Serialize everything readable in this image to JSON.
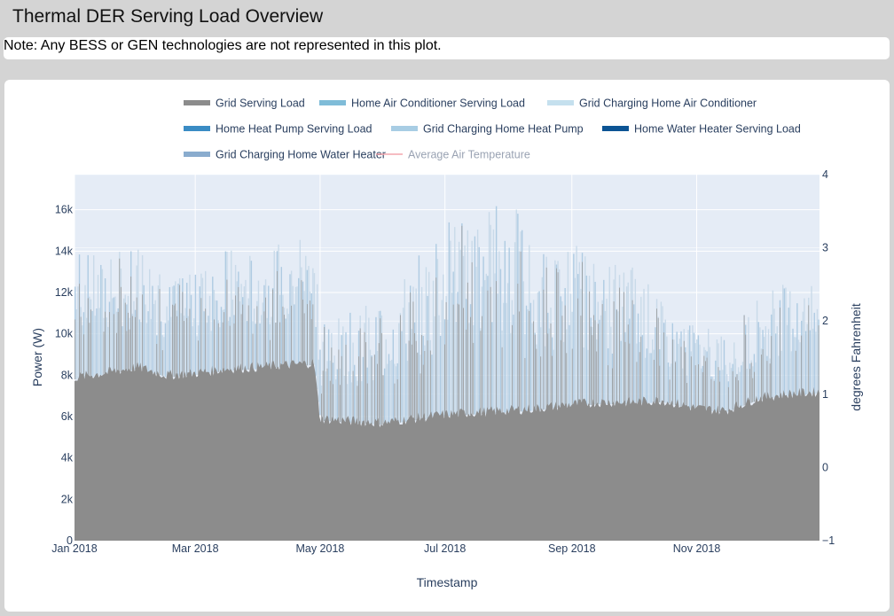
{
  "page": {
    "title": "Thermal DER Serving Load Overview",
    "note": "Note: Any BESS or GEN technologies are not represented in this plot."
  },
  "chart_data": {
    "type": "area",
    "legend_position": "top",
    "grid": true,
    "xlabel": "Timestamp",
    "ylabel": "Power (W)",
    "y2label": "degrees Fahrenheit",
    "xlim": [
      "2018-01-01",
      "2018-12-31"
    ],
    "ylim": [
      0,
      17700
    ],
    "y2lim": [
      -1,
      4
    ],
    "x_ticks": [
      "Jan 2018",
      "Mar 2018",
      "May 2018",
      "Jul 2018",
      "Sep 2018",
      "Nov 2018"
    ],
    "y_ticks": [
      "0",
      "2k",
      "4k",
      "6k",
      "8k",
      "10k",
      "12k",
      "14k",
      "16k"
    ],
    "y2_ticks": [
      "−1",
      "0",
      "1",
      "2",
      "3",
      "4"
    ],
    "series_legend": [
      {
        "name": "Grid Serving Load",
        "color": "#8c8c8c",
        "style": "bar"
      },
      {
        "name": "Home Air Conditioner Serving Load",
        "color": "#7fbcd8",
        "style": "bar"
      },
      {
        "name": "Grid Charging Home Air Conditioner",
        "color": "#c5e0ee",
        "style": "bar"
      },
      {
        "name": "Home Heat Pump Serving Load",
        "color": "#3a8cc4",
        "style": "bar"
      },
      {
        "name": "Grid Charging Home Heat Pump",
        "color": "#a8cde4",
        "style": "bar"
      },
      {
        "name": "Home Water Heater Serving Load",
        "color": "#0c5494",
        "style": "bar"
      },
      {
        "name": "Grid Charging Home Water Heater",
        "color": "#8aacce",
        "style": "bar"
      },
      {
        "name": "Average Air Temperature",
        "color": "#f4a6ad",
        "style": "line",
        "muted": true
      }
    ],
    "series": [
      {
        "name": "Grid Serving Load",
        "x": [
          "2018-01-01",
          "2018-01-15",
          "2018-02-01",
          "2018-02-15",
          "2018-03-01",
          "2018-03-15",
          "2018-04-01",
          "2018-04-15",
          "2018-04-28",
          "2018-05-01",
          "2018-05-15",
          "2018-06-01",
          "2018-06-15",
          "2018-07-01",
          "2018-07-15",
          "2018-08-01",
          "2018-08-15",
          "2018-09-01",
          "2018-09-15",
          "2018-10-01",
          "2018-10-15",
          "2018-11-01",
          "2018-11-15",
          "2018-12-01",
          "2018-12-15",
          "2018-12-31"
        ],
        "values": [
          7800,
          8000,
          8300,
          7900,
          8000,
          8200,
          8300,
          8400,
          8500,
          5800,
          5700,
          5600,
          5800,
          6000,
          6100,
          6200,
          6300,
          6500,
          6600,
          6600,
          6700,
          6300,
          6200,
          6800,
          7000,
          7100
        ]
      },
      {
        "name": "Home Air Conditioner Serving Load (peak total)",
        "x": [
          "2018-01-01",
          "2018-01-15",
          "2018-02-01",
          "2018-02-15",
          "2018-03-01",
          "2018-03-15",
          "2018-04-01",
          "2018-04-15",
          "2018-04-28",
          "2018-05-01",
          "2018-05-15",
          "2018-06-01",
          "2018-06-15",
          "2018-07-01",
          "2018-07-15",
          "2018-08-01",
          "2018-08-15",
          "2018-09-01",
          "2018-09-15",
          "2018-10-01",
          "2018-10-15",
          "2018-11-01",
          "2018-11-15",
          "2018-12-01",
          "2018-12-15",
          "2018-12-31"
        ],
        "values": [
          14500,
          13500,
          14800,
          12500,
          13000,
          14200,
          14000,
          15000,
          15800,
          10500,
          11000,
          12000,
          13500,
          15500,
          16000,
          16800,
          14000,
          14500,
          13500,
          13500,
          11500,
          10500,
          10000,
          12000,
          12500,
          12300
        ]
      }
    ]
  }
}
